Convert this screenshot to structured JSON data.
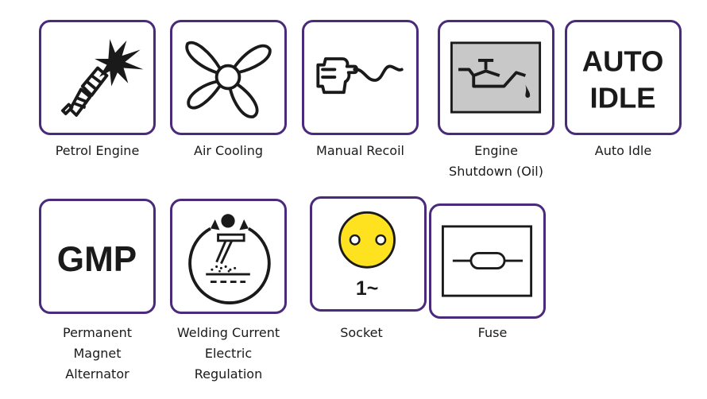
{
  "symbols": [
    {
      "icon": "petrol-engine-icon",
      "caption": [
        "Petrol Engine"
      ]
    },
    {
      "icon": "air-cooling-icon",
      "caption": [
        "Air Cooling"
      ]
    },
    {
      "icon": "manual-recoil-icon",
      "caption": [
        "Manual Recoil"
      ]
    },
    {
      "icon": "engine-shutdown-oil-icon",
      "caption": [
        "Engine",
        "Shutdown (Oil)"
      ]
    },
    {
      "icon": "auto-idle-icon",
      "caption": [
        "Auto Idle"
      ],
      "icon_text": [
        "AUTO",
        "IDLE"
      ]
    },
    {
      "icon": "gmp-icon",
      "caption": [
        "Permanent",
        "Magnet",
        "Alternator"
      ],
      "icon_text": [
        "GMP"
      ]
    },
    {
      "icon": "welding-current-regulation-icon",
      "caption": [
        "Welding Current",
        "Electric",
        "Regulation"
      ]
    },
    {
      "icon": "socket-icon",
      "caption": [
        "Socket"
      ],
      "icon_text": [
        "1~"
      ]
    },
    {
      "icon": "fuse-icon",
      "caption": [
        "Fuse"
      ]
    }
  ],
  "colors": {
    "border": "#4a2a7a",
    "socket_yellow": "#ffe21f",
    "oil_panel": "#c8c8c8",
    "ink": "#1a1a1a"
  }
}
